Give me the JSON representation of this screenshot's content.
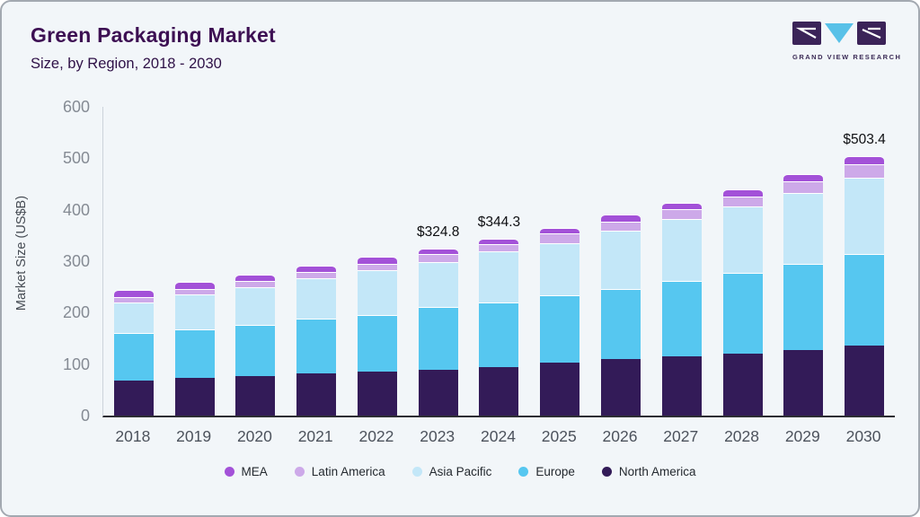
{
  "header": {
    "title": "Green Packaging Market",
    "subtitle": "Size, by Region, 2018 - 2030"
  },
  "logo": {
    "brand": "GRAND VIEW RESEARCH"
  },
  "chart_data": {
    "type": "bar",
    "stacked": true,
    "title": "Green Packaging Market",
    "subtitle": "Size, by Region, 2018 - 2030",
    "xlabel": "",
    "ylabel": "Market Size (US$B)",
    "ylim": [
      0,
      600
    ],
    "yticks": [
      0,
      100,
      200,
      300,
      400,
      500,
      600
    ],
    "grid": false,
    "legend_position": "bottom",
    "categories": [
      "2018",
      "2019",
      "2020",
      "2021",
      "2022",
      "2023",
      "2024",
      "2025",
      "2026",
      "2027",
      "2028",
      "2029",
      "2030"
    ],
    "series": [
      {
        "name": "North America",
        "color": "#331b58",
        "values": [
          68,
          73,
          77,
          82,
          86,
          89.5,
          95,
          103.5,
          110.5,
          115.5,
          120.5,
          126.5,
          136
        ]
      },
      {
        "name": "Europe",
        "color": "#56c7f0",
        "values": [
          92,
          95,
          100,
          106,
          110,
          121,
          125.5,
          131,
          136,
          145.5,
          156,
          167.5,
          177.5
        ]
      },
      {
        "name": "Asia Pacific",
        "color": "#c3e7f8",
        "values": [
          60,
          67,
          73,
          78.5,
          86,
          88.5,
          98,
          101,
          112.5,
          121,
          129.5,
          138,
          149
        ]
      },
      {
        "name": "Latin America",
        "color": "#cda9e9",
        "values": [
          10.5,
          11,
          11.7,
          12,
          13,
          15,
          14.5,
          18.5,
          18.5,
          19.5,
          20.5,
          23,
          26
        ]
      },
      {
        "name": "MEA",
        "color": "#a351d8",
        "values": [
          13,
          13.2,
          13,
          13.5,
          14,
          10.8,
          11.3,
          10,
          12.5,
          12,
          13.5,
          13.5,
          14.9
        ]
      }
    ],
    "annotations": [
      {
        "category": "2023",
        "text": "$324.8"
      },
      {
        "category": "2024",
        "text": "$344.3"
      },
      {
        "category": "2030",
        "text": "$503.4"
      }
    ],
    "legend_order": [
      "MEA",
      "Latin America",
      "Asia Pacific",
      "Europe",
      "North America"
    ]
  }
}
